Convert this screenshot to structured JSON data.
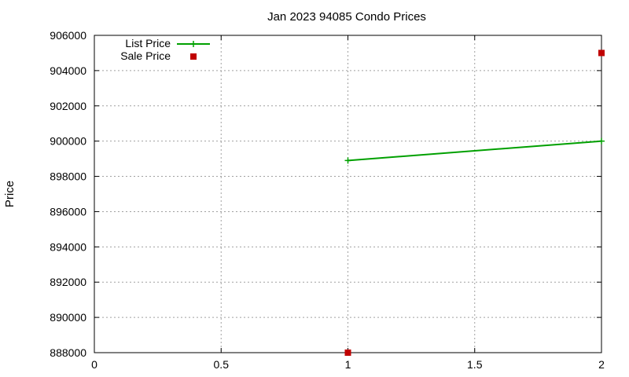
{
  "chart_data": {
    "type": "line",
    "title": "Jan 2023 94085 Condo Prices",
    "xlabel": "",
    "ylabel": "Price",
    "xlim": [
      0,
      2
    ],
    "ylim": [
      888000,
      906000
    ],
    "xticks": [
      0,
      0.5,
      1,
      1.5,
      2
    ],
    "xtick_labels": [
      "0",
      "0.5",
      "1",
      "1.5",
      "2"
    ],
    "yticks": [
      888000,
      890000,
      892000,
      894000,
      896000,
      898000,
      900000,
      902000,
      904000,
      906000
    ],
    "ytick_labels": [
      "888000",
      "890000",
      "892000",
      "894000",
      "896000",
      "898000",
      "900000",
      "902000",
      "904000",
      "906000"
    ],
    "grid": true,
    "legend_position": "top-left",
    "series": [
      {
        "name": "List Price",
        "style": "line-with-plus-points",
        "color": "#00a000",
        "points": [
          {
            "x": 1,
            "y": 898900
          },
          {
            "x": 2,
            "y": 900000
          }
        ]
      },
      {
        "name": "Sale Price",
        "style": "square-points",
        "color": "#c00000",
        "points": [
          {
            "x": 1,
            "y": 888000
          },
          {
            "x": 2,
            "y": 905000
          }
        ]
      }
    ]
  }
}
